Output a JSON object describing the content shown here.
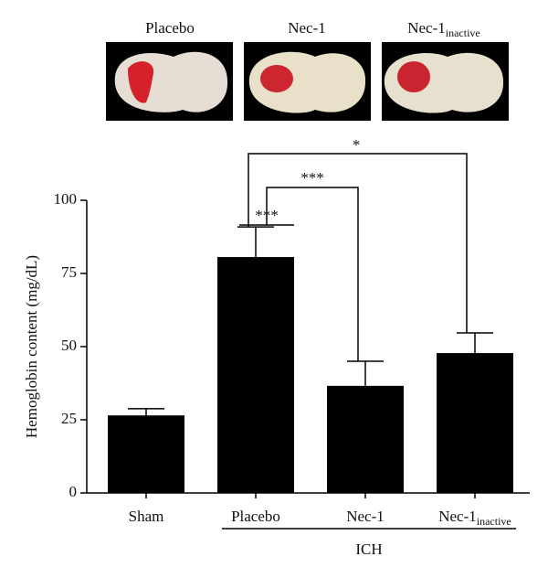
{
  "chart_data": {
    "type": "bar",
    "ylabel": "Hemoglobin content (mg/dL)",
    "categories": [
      "Sham",
      "Placebo",
      "Nec-1",
      "Nec-1"
    ],
    "category_subscripts": [
      null,
      null,
      null,
      "inactive"
    ],
    "values": [
      26.5,
      80.6,
      36.6,
      47.8
    ],
    "errors": [
      2.3,
      10.3,
      8.4,
      6.9
    ],
    "color": "#000000",
    "ylim": [
      0,
      100
    ],
    "yticks": [
      0,
      25,
      50,
      75,
      100
    ],
    "group_label": "ICH",
    "annotations": [
      "***",
      "***",
      "*"
    ]
  }
}
